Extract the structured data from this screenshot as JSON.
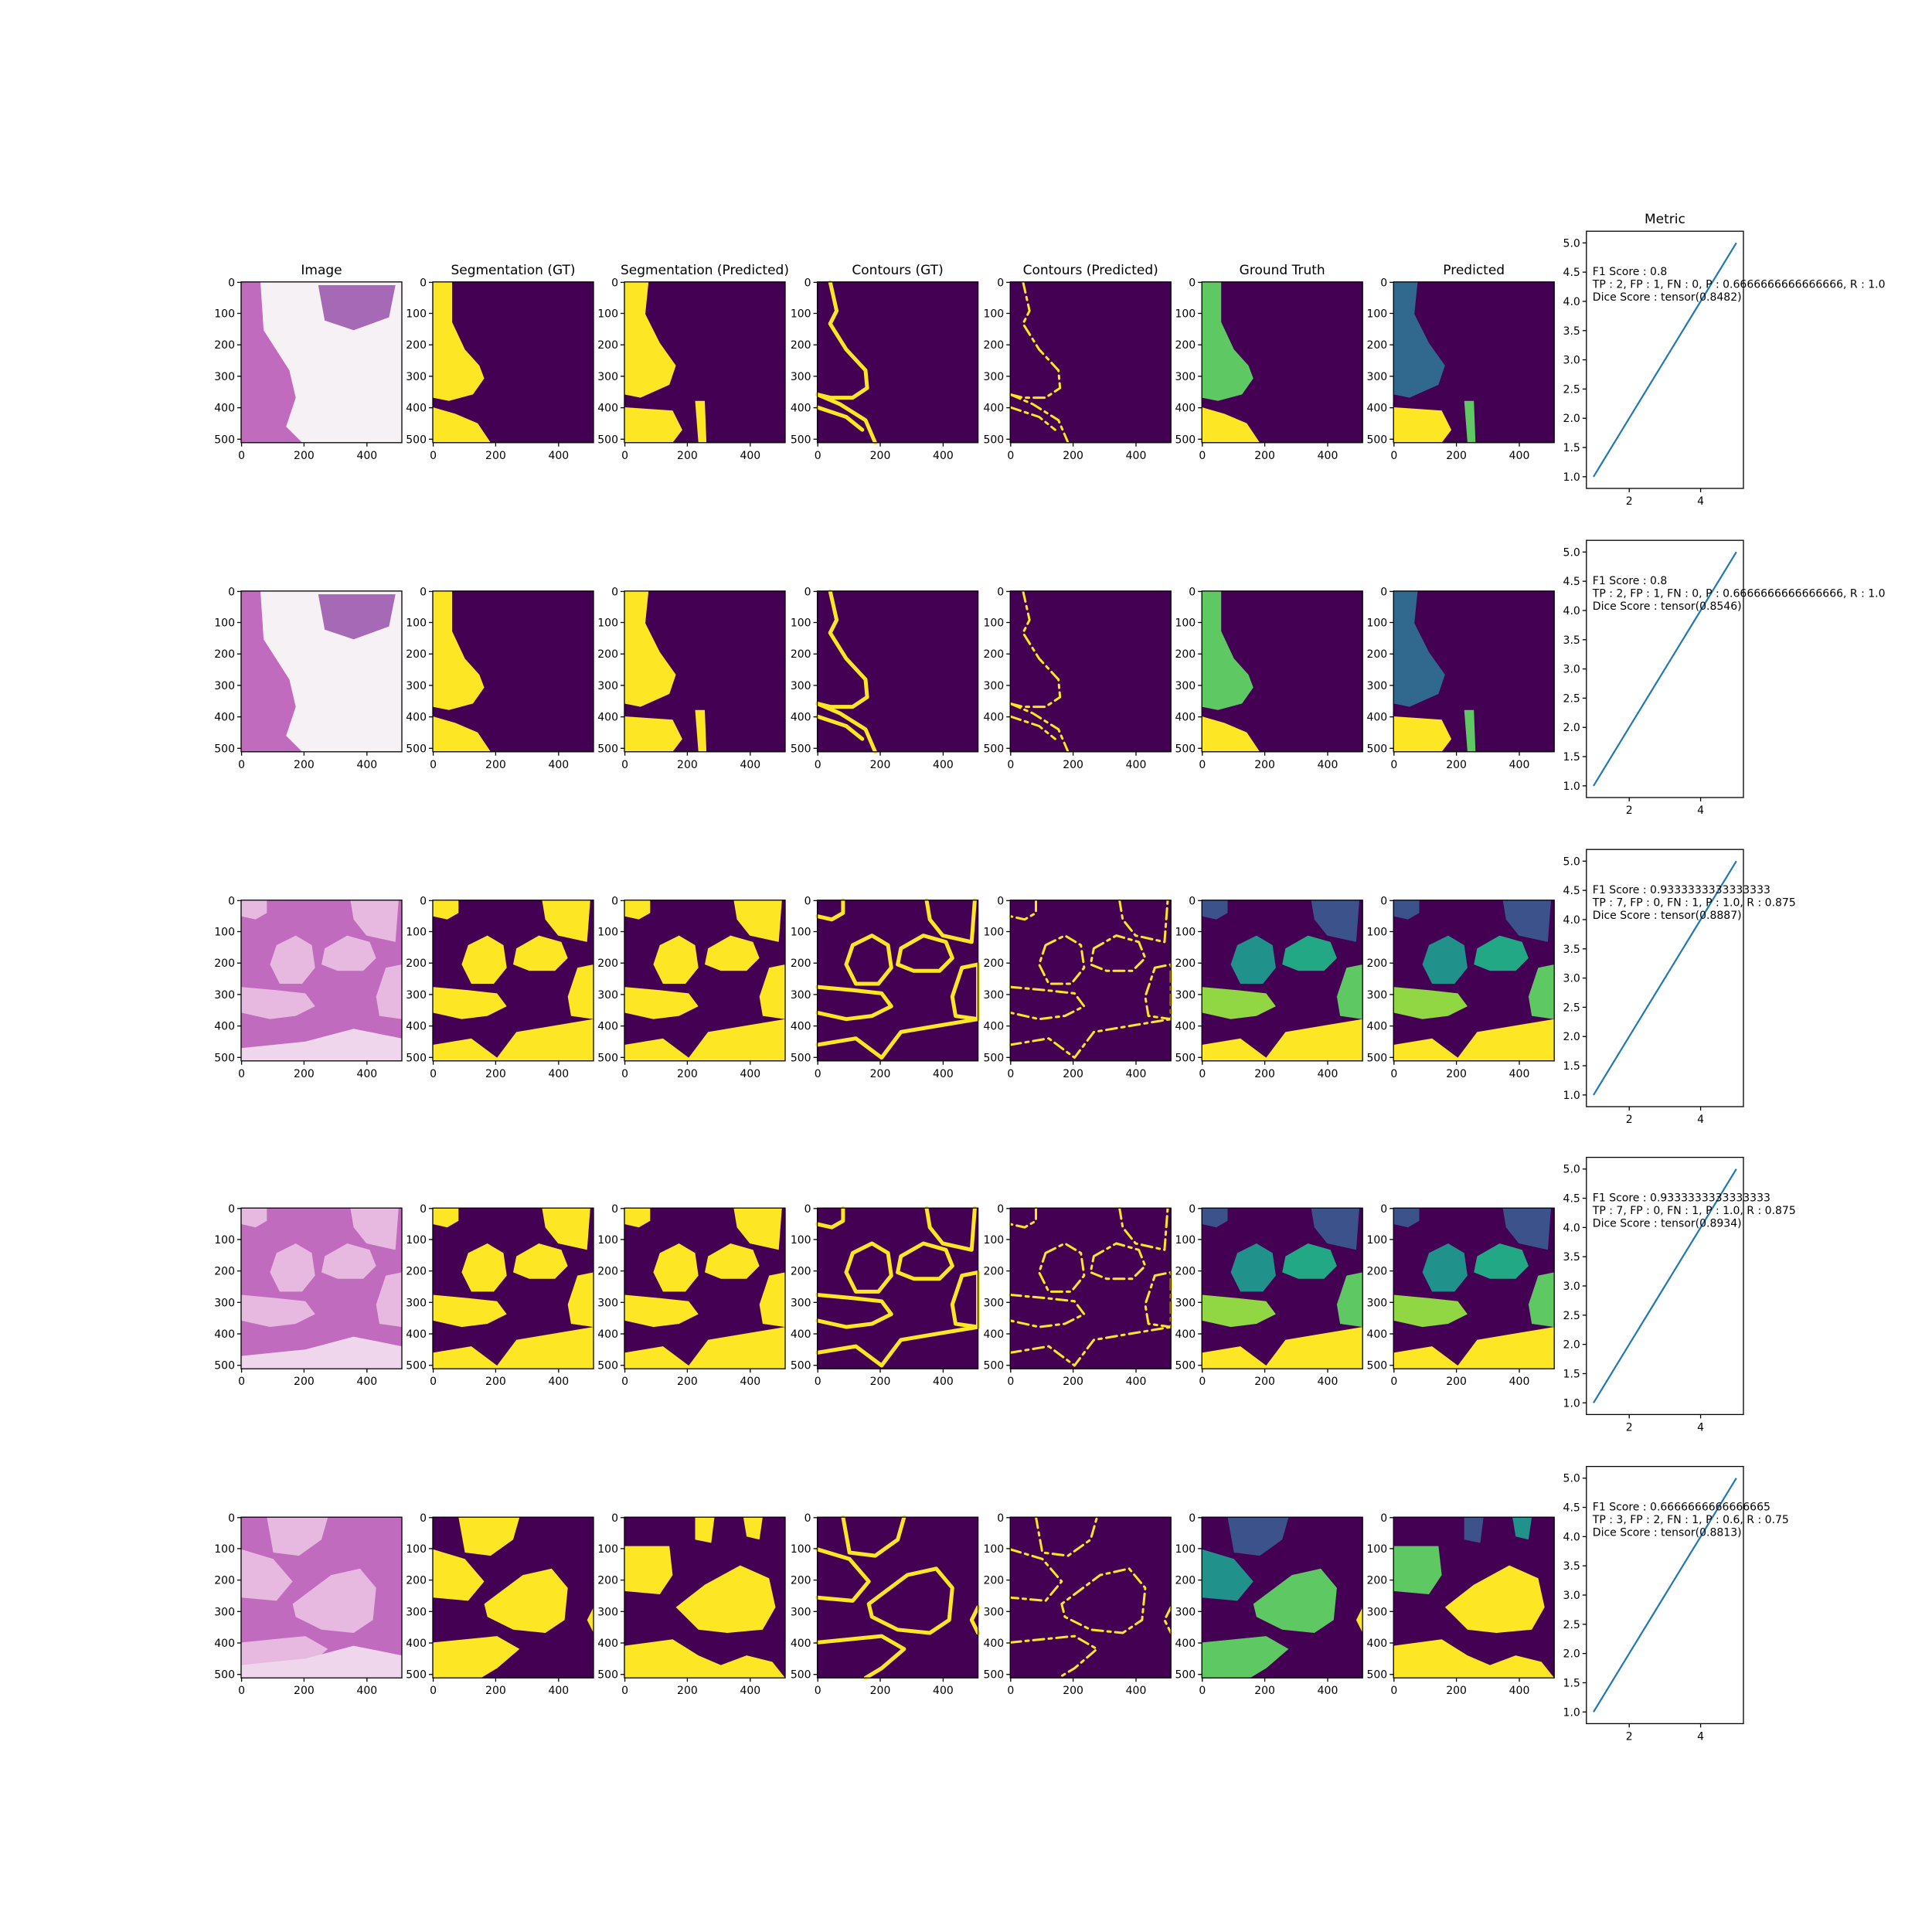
{
  "figure": {
    "titles": [
      "Image",
      "Segmentation (GT)",
      "Segmentation (Predicted)",
      "Contours (GT)",
      "Contours (Predicted)",
      "Ground Truth",
      "Predicted"
    ],
    "metric_title": "Metric",
    "image_x_ticks": [
      "0",
      "200",
      "400"
    ],
    "image_y_ticks": [
      "0",
      "100",
      "200",
      "300",
      "400",
      "500"
    ],
    "colors": {
      "background_purple": "#440154",
      "foreground_yellow": "#fde725",
      "viridis_blue": "#3b528b",
      "viridis_slate": "#31688e",
      "viridis_teal": "#21918c",
      "viridis_seafoam": "#22a884",
      "viridis_green": "#5ec962",
      "viridis_lime": "#90d743",
      "histology_pink": "#c06bbd",
      "histology_white": "#f6f1f5",
      "line_blue": "#1f77b4"
    },
    "samples": [
      {
        "scene": "top",
        "metrics": [
          "F1 Score : 0.8",
          "TP : 2, FP : 1, FN : 0, P : 0.6666666666666666, R : 1.0",
          "Dice Score : tensor(0.8482)"
        ]
      },
      {
        "scene": "top",
        "metrics": [
          "F1 Score : 0.8",
          "TP : 2, FP : 1, FN : 0, P : 0.6666666666666666, R : 1.0",
          "Dice Score : tensor(0.8546)"
        ]
      },
      {
        "scene": "glands",
        "metrics": [
          "F1 Score : 0.9333333333333333",
          "TP : 7, FP : 0, FN : 1, P : 1.0, R : 0.875",
          "Dice Score : tensor(0.8887)"
        ]
      },
      {
        "scene": "glands",
        "metrics": [
          "F1 Score : 0.9333333333333333",
          "TP : 7, FP : 0, FN : 1, P : 1.0, R : 0.875",
          "Dice Score : tensor(0.8934)"
        ]
      },
      {
        "scene": "blob",
        "metrics": [
          "F1 Score : 0.6666666666666665",
          "TP : 3, FP : 2, FN : 1, P : 0.6, R : 0.75",
          "Dice Score : tensor(0.8813)"
        ]
      }
    ]
  },
  "chart_data": {
    "type": "line",
    "title": "Metric",
    "x": [
      1,
      2,
      3,
      4,
      5
    ],
    "series": [
      {
        "values": [
          1,
          2,
          3,
          4,
          5
        ]
      }
    ],
    "xlim": [
      0.8,
      5.2
    ],
    "ylim": [
      0.8,
      5.2
    ],
    "x_ticks": [
      "2",
      "4"
    ],
    "y_ticks": [
      "1.0",
      "1.5",
      "2.0",
      "2.5",
      "3.0",
      "3.5",
      "4.0",
      "4.5",
      "5.0"
    ],
    "grid": false,
    "repeated_panels": 5
  }
}
